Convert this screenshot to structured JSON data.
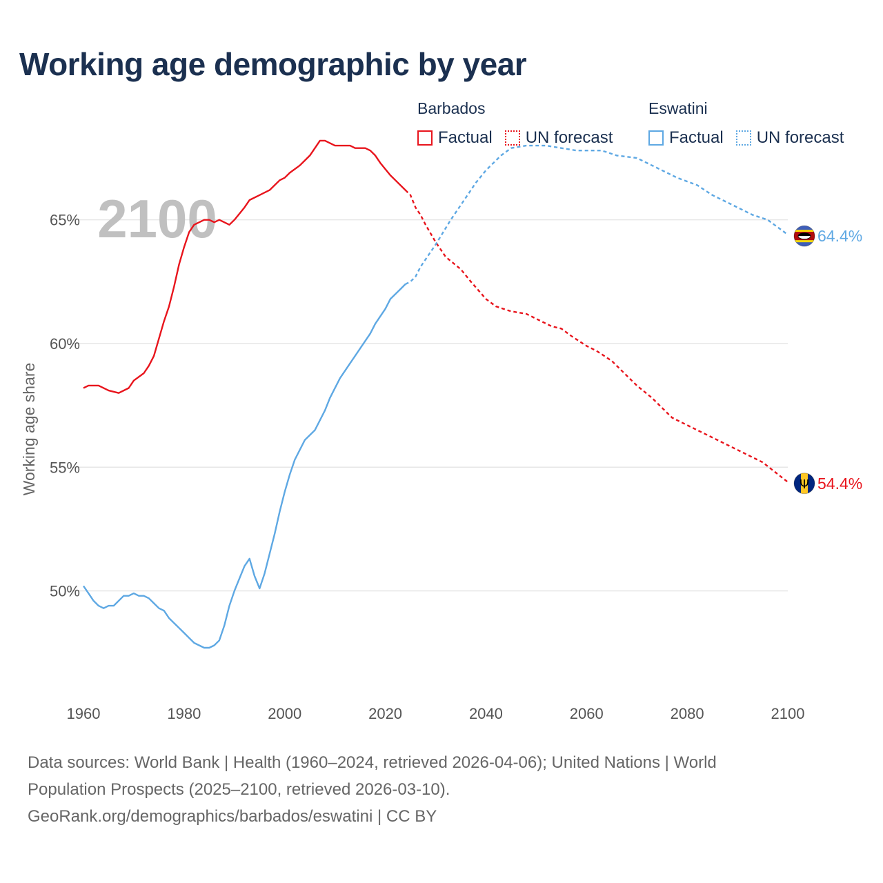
{
  "title": "Working age demographic by year",
  "legend": {
    "groups": [
      {
        "country": "Barbados",
        "factual": "Factual",
        "forecast": "UN forecast",
        "color": "#e8141c"
      },
      {
        "country": "Eswatini",
        "factual": "Factual",
        "forecast": "UN forecast",
        "color": "#5ea8e3"
      }
    ]
  },
  "footer": {
    "line1": "Data sources: World Bank | Health (1960–2024, retrieved 2026-04-06); United Nations | World",
    "line2": "Population Prospects (2025–2100, retrieved 2026-03-10).",
    "line3": "GeoRank.org/demographics/barbados/eswatini | CC BY"
  },
  "chart_data": {
    "type": "line",
    "title": "Working age demographic by year",
    "current_year_label": "2100",
    "xlabel": "",
    "ylabel": "Working age share",
    "xlim": [
      1960,
      2100
    ],
    "ylim": [
      46.0,
      67.5
    ],
    "x_ticks": [
      1960,
      1980,
      2000,
      2020,
      2040,
      2060,
      2080,
      2100
    ],
    "y_ticks": [
      50,
      55,
      60,
      65
    ],
    "y_tick_labels": [
      "50%",
      "55%",
      "60%",
      "65%"
    ],
    "grid": true,
    "factual_until": 2024,
    "series": [
      {
        "name": "Barbados",
        "color": "#e8141c",
        "end_label": "54.4%",
        "flag": "barbados-flag-icon",
        "points": [
          [
            1960,
            58.2
          ],
          [
            1961,
            58.3
          ],
          [
            1963,
            58.3
          ],
          [
            1965,
            58.1
          ],
          [
            1967,
            58.0
          ],
          [
            1969,
            58.2
          ],
          [
            1970,
            58.5
          ],
          [
            1972,
            58.8
          ],
          [
            1973,
            59.1
          ],
          [
            1974,
            59.5
          ],
          [
            1975,
            60.2
          ],
          [
            1976,
            60.9
          ],
          [
            1977,
            61.5
          ],
          [
            1978,
            62.3
          ],
          [
            1979,
            63.2
          ],
          [
            1980,
            63.9
          ],
          [
            1981,
            64.5
          ],
          [
            1982,
            64.8
          ],
          [
            1984,
            65.0
          ],
          [
            1985,
            65.0
          ],
          [
            1986,
            64.9
          ],
          [
            1987,
            65.0
          ],
          [
            1989,
            64.8
          ],
          [
            1990,
            65.0
          ],
          [
            1992,
            65.5
          ],
          [
            1993,
            65.8
          ],
          [
            1995,
            66.0
          ],
          [
            1997,
            66.2
          ],
          [
            1999,
            66.6
          ],
          [
            2000,
            66.7
          ],
          [
            2001,
            66.9
          ],
          [
            2003,
            67.2
          ],
          [
            2004,
            67.4
          ],
          [
            2005,
            67.6
          ],
          [
            2006,
            67.9
          ],
          [
            2007,
            68.2
          ],
          [
            2008,
            68.2
          ],
          [
            2010,
            68.0
          ],
          [
            2013,
            68.0
          ],
          [
            2014,
            67.9
          ],
          [
            2016,
            67.9
          ],
          [
            2017,
            67.8
          ],
          [
            2018,
            67.6
          ],
          [
            2019,
            67.3
          ],
          [
            2021,
            66.8
          ],
          [
            2022,
            66.6
          ],
          [
            2024,
            66.2
          ],
          [
            2025,
            66.0
          ],
          [
            2026,
            65.5
          ],
          [
            2027,
            65.2
          ],
          [
            2028,
            64.8
          ],
          [
            2030,
            64.1
          ],
          [
            2032,
            63.5
          ],
          [
            2035,
            63.0
          ],
          [
            2037,
            62.5
          ],
          [
            2040,
            61.8
          ],
          [
            2042,
            61.5
          ],
          [
            2045,
            61.3
          ],
          [
            2048,
            61.2
          ],
          [
            2050,
            61.0
          ],
          [
            2053,
            60.7
          ],
          [
            2055,
            60.6
          ],
          [
            2057,
            60.3
          ],
          [
            2060,
            59.9
          ],
          [
            2062,
            59.7
          ],
          [
            2065,
            59.3
          ],
          [
            2068,
            58.7
          ],
          [
            2070,
            58.3
          ],
          [
            2073,
            57.8
          ],
          [
            2075,
            57.4
          ],
          [
            2077,
            57.0
          ],
          [
            2080,
            56.7
          ],
          [
            2085,
            56.2
          ],
          [
            2090,
            55.7
          ],
          [
            2095,
            55.2
          ],
          [
            2100,
            54.4
          ]
        ]
      },
      {
        "name": "Eswatini",
        "color": "#5ea8e3",
        "end_label": "64.4%",
        "flag": "eswatini-flag-icon",
        "points": [
          [
            1960,
            50.2
          ],
          [
            1961,
            49.9
          ],
          [
            1962,
            49.6
          ],
          [
            1963,
            49.4
          ],
          [
            1964,
            49.3
          ],
          [
            1965,
            49.4
          ],
          [
            1966,
            49.4
          ],
          [
            1967,
            49.6
          ],
          [
            1968,
            49.8
          ],
          [
            1969,
            49.8
          ],
          [
            1970,
            49.9
          ],
          [
            1971,
            49.8
          ],
          [
            1972,
            49.8
          ],
          [
            1973,
            49.7
          ],
          [
            1974,
            49.5
          ],
          [
            1975,
            49.3
          ],
          [
            1976,
            49.2
          ],
          [
            1977,
            48.9
          ],
          [
            1978,
            48.7
          ],
          [
            1979,
            48.5
          ],
          [
            1980,
            48.3
          ],
          [
            1981,
            48.1
          ],
          [
            1982,
            47.9
          ],
          [
            1983,
            47.8
          ],
          [
            1984,
            47.7
          ],
          [
            1985,
            47.7
          ],
          [
            1986,
            47.8
          ],
          [
            1987,
            48.0
          ],
          [
            1988,
            48.6
          ],
          [
            1989,
            49.4
          ],
          [
            1990,
            50.0
          ],
          [
            1991,
            50.5
          ],
          [
            1992,
            51.0
          ],
          [
            1993,
            51.3
          ],
          [
            1994,
            50.6
          ],
          [
            1995,
            50.1
          ],
          [
            1996,
            50.7
          ],
          [
            1997,
            51.5
          ],
          [
            1998,
            52.3
          ],
          [
            1999,
            53.2
          ],
          [
            2000,
            54.0
          ],
          [
            2001,
            54.7
          ],
          [
            2002,
            55.3
          ],
          [
            2004,
            56.1
          ],
          [
            2006,
            56.5
          ],
          [
            2008,
            57.3
          ],
          [
            2009,
            57.8
          ],
          [
            2011,
            58.6
          ],
          [
            2013,
            59.2
          ],
          [
            2015,
            59.8
          ],
          [
            2017,
            60.4
          ],
          [
            2018,
            60.8
          ],
          [
            2020,
            61.4
          ],
          [
            2021,
            61.8
          ],
          [
            2023,
            62.2
          ],
          [
            2024,
            62.4
          ],
          [
            2025,
            62.5
          ],
          [
            2026,
            62.7
          ],
          [
            2027,
            63.1
          ],
          [
            2030,
            64.0
          ],
          [
            2033,
            65.0
          ],
          [
            2036,
            65.9
          ],
          [
            2038,
            66.5
          ],
          [
            2040,
            67.0
          ],
          [
            2043,
            67.6
          ],
          [
            2045,
            67.9
          ],
          [
            2048,
            68.0
          ],
          [
            2052,
            68.0
          ],
          [
            2055,
            67.9
          ],
          [
            2058,
            67.8
          ],
          [
            2063,
            67.8
          ],
          [
            2066,
            67.6
          ],
          [
            2070,
            67.5
          ],
          [
            2073,
            67.2
          ],
          [
            2075,
            67.0
          ],
          [
            2078,
            66.7
          ],
          [
            2082,
            66.4
          ],
          [
            2085,
            66.0
          ],
          [
            2088,
            65.7
          ],
          [
            2090,
            65.5
          ],
          [
            2093,
            65.2
          ],
          [
            2096,
            65.0
          ],
          [
            2098,
            64.7
          ],
          [
            2100,
            64.4
          ]
        ]
      }
    ]
  }
}
